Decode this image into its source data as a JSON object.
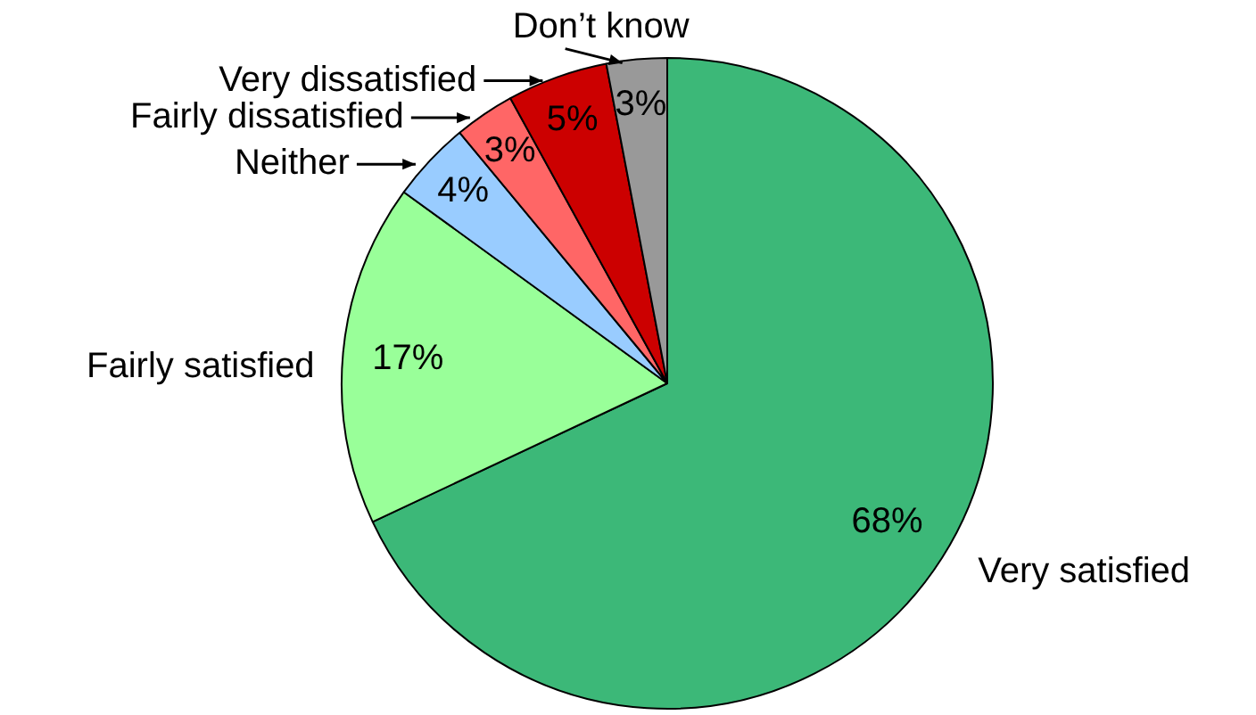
{
  "chart_data": {
    "type": "pie",
    "categories": [
      "Very satisfied",
      "Fairly satisfied",
      "Neither",
      "Fairly dissatisfied",
      "Very dissatisfied",
      "Don’t know"
    ],
    "values": [
      68,
      17,
      4,
      3,
      5,
      3
    ],
    "colors": [
      "#3cb878",
      "#99ff99",
      "#99ccff",
      "#ff6666",
      "#cc0000",
      "#999999"
    ],
    "value_labels": [
      "68%",
      "17%",
      "4%",
      "3%",
      "5%",
      "3%"
    ],
    "legend": false
  }
}
